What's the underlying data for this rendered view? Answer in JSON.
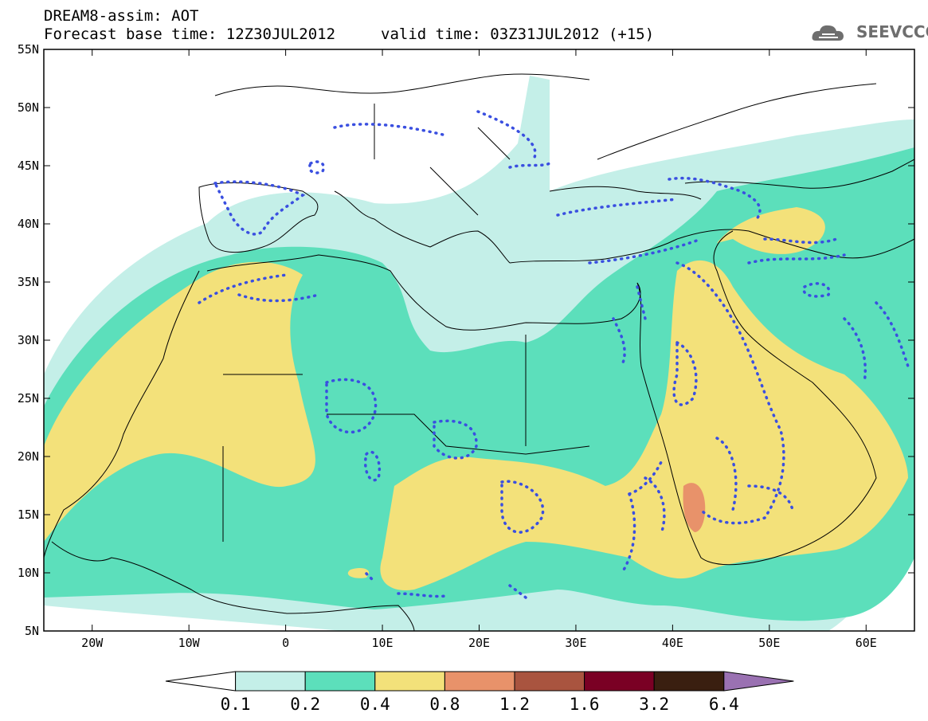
{
  "header": {
    "line1": "DREAM8-assim: AOT",
    "base_time": "Forecast base time: 12Z30JUL2012",
    "valid_time": "valid time: 03Z31JUL2012 (+15)"
  },
  "logo": {
    "text": "SEEVCCC",
    "icon": "cloud-icon"
  },
  "axes": {
    "lat_ticks": [
      "55N",
      "50N",
      "45N",
      "40N",
      "35N",
      "30N",
      "25N",
      "20N",
      "15N",
      "10N",
      "5N"
    ],
    "lon_ticks": [
      "20W",
      "10W",
      "0",
      "10E",
      "20E",
      "30E",
      "40E",
      "50E",
      "60E"
    ],
    "lat_range": [
      5,
      55
    ],
    "lon_range": [
      -25,
      65
    ]
  },
  "colorbar": {
    "labels": [
      "0.1",
      "0.2",
      "0.4",
      "0.8",
      "1.2",
      "1.6",
      "3.2",
      "6.4"
    ],
    "colors": [
      "#ffffff",
      "#c4efe8",
      "#5cdfbb",
      "#f3e17a",
      "#e8926a",
      "#a9543f",
      "#7a0024",
      "#3a1f10",
      "#9a71b2"
    ]
  },
  "colors": {
    "dust_very_light": "#c4efe8",
    "dust_light": "#5cdfbb",
    "dust_medium": "#f3e17a",
    "dust_high": "#e8926a",
    "contour_dotted": "#3a4fe0"
  }
}
